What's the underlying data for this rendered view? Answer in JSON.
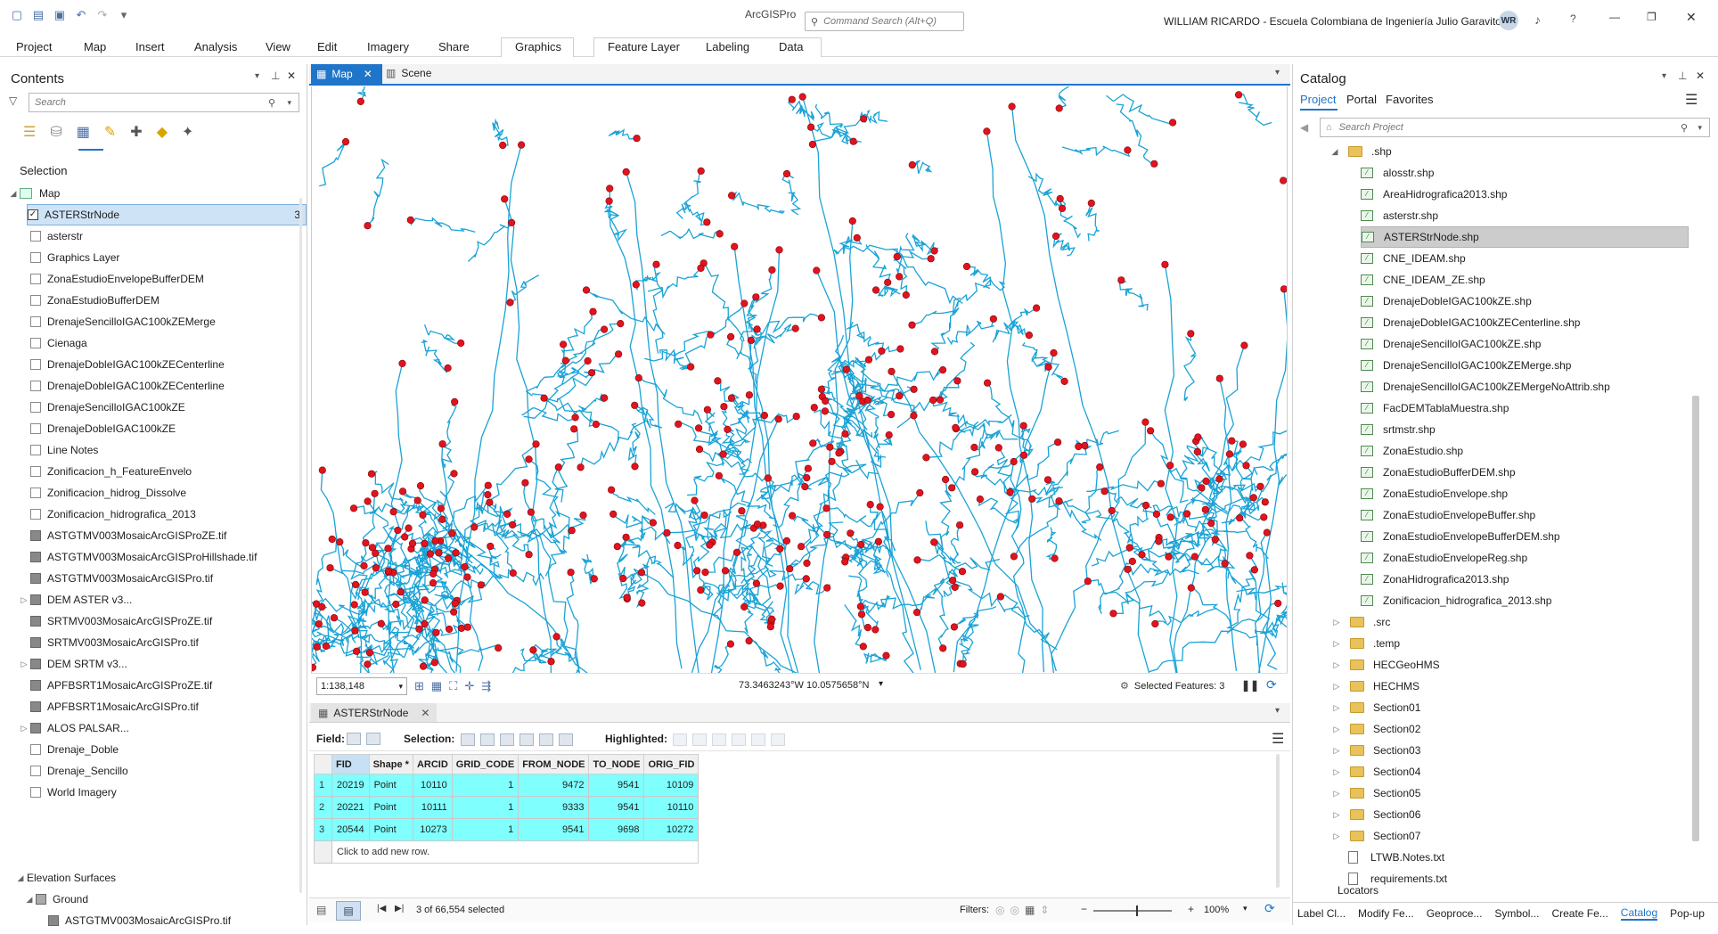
{
  "titlebar": {
    "app_title": "ArcGISPro",
    "command_search_placeholder": "Command Search (Alt+Q)",
    "user": "WILLIAM RICARDO  - Escuela Colombiana de Ingeniería Julio Garavito",
    "avatar_initials": "WR"
  },
  "ribbon": {
    "tabs": [
      "Project",
      "Map",
      "Insert",
      "Analysis",
      "View",
      "Edit",
      "Imagery",
      "Share",
      "Graphics",
      "Feature Layer",
      "Labeling",
      "Data"
    ]
  },
  "contents": {
    "title": "Contents",
    "search_placeholder": "Search",
    "section_label": "Selection",
    "map_label": "Map",
    "layers": [
      {
        "name": "ASTERStrNode",
        "type": "check",
        "checked": true,
        "count": "3",
        "selected": true
      },
      {
        "name": "asterstr",
        "type": "check"
      },
      {
        "name": "Graphics Layer",
        "type": "check"
      },
      {
        "name": "ZonaEstudioEnvelopeBufferDEM",
        "type": "check"
      },
      {
        "name": "ZonaEstudioBufferDEM",
        "type": "check"
      },
      {
        "name": "DrenajeSencilloIGAC100kZEMerge",
        "type": "check"
      },
      {
        "name": "Cienaga",
        "type": "check"
      },
      {
        "name": "DrenajeDobleIGAC100kZECenterline",
        "type": "check"
      },
      {
        "name": "DrenajeDobleIGAC100kZECenterline",
        "type": "check"
      },
      {
        "name": "DrenajeSencilloIGAC100kZE",
        "type": "check"
      },
      {
        "name": "DrenajeDobleIGAC100kZE",
        "type": "check"
      },
      {
        "name": "Line Notes",
        "type": "check"
      },
      {
        "name": "Zonificacion_h_FeatureEnvelo",
        "type": "check"
      },
      {
        "name": "Zonificacion_hidrog_Dissolve",
        "type": "check"
      },
      {
        "name": "Zonificacion_hidrografica_2013",
        "type": "check"
      },
      {
        "name": "ASTGTMV003MosaicArcGISProZE.tif",
        "type": "raster"
      },
      {
        "name": "ASTGTMV003MosaicArcGISProHillshade.tif",
        "type": "raster"
      },
      {
        "name": "ASTGTMV003MosaicArcGISPro.tif",
        "type": "raster"
      },
      {
        "name": "DEM ASTER v3...",
        "type": "raster",
        "expand": true
      },
      {
        "name": "SRTMV003MosaicArcGISProZE.tif",
        "type": "raster"
      },
      {
        "name": "SRTMV003MosaicArcGISPro.tif",
        "type": "raster"
      },
      {
        "name": "DEM SRTM v3...",
        "type": "raster",
        "expand": true
      },
      {
        "name": "APFBSRT1MosaicArcGISProZE.tif",
        "type": "raster"
      },
      {
        "name": "APFBSRT1MosaicArcGISPro.tif",
        "type": "raster"
      },
      {
        "name": "ALOS PALSAR...",
        "type": "raster",
        "expand": true
      },
      {
        "name": "Drenaje_Doble",
        "type": "check"
      },
      {
        "name": "Drenaje_Sencillo",
        "type": "check"
      },
      {
        "name": "World Imagery",
        "type": "check"
      }
    ],
    "elevation_label": "Elevation Surfaces",
    "ground_label": "Ground",
    "ground_child": "ASTGTMV003MosaicArcGISPro.tif"
  },
  "map_tabs": {
    "map": "Map",
    "scene": "Scene"
  },
  "map_status": {
    "scale": "1:138,148",
    "coordinates": "73.3463243°W 10.0575658°N",
    "selected_features": "Selected Features: 3"
  },
  "table": {
    "tab_label": "ASTERStrNode",
    "field_label": "Field:",
    "selection_label": "Selection:",
    "highlighted_label": "Highlighted:",
    "columns": [
      "FID",
      "Shape *",
      "ARCID",
      "GRID_CODE",
      "FROM_NODE",
      "TO_NODE",
      "ORIG_FID"
    ],
    "rows": [
      {
        "n": "1",
        "cells": [
          "20219",
          "Point",
          "10110",
          "1",
          "9472",
          "9541",
          "10109"
        ]
      },
      {
        "n": "2",
        "cells": [
          "20221",
          "Point",
          "10111",
          "1",
          "9333",
          "9541",
          "10110"
        ]
      },
      {
        "n": "3",
        "cells": [
          "20544",
          "Point",
          "10273",
          "1",
          "9541",
          "9698",
          "10272"
        ]
      }
    ],
    "add_row": "Click to add new row.",
    "selected_count": "3 of 66,554 selected",
    "filters_label": "Filters:",
    "zoom": "100%"
  },
  "catalog": {
    "title": "Catalog",
    "tabs": [
      "Project",
      "Portal",
      "Favorites"
    ],
    "search_placeholder": "Search Project",
    "shp_folder": ".shp",
    "shp_items": [
      "alosstr.shp",
      "AreaHidrografica2013.shp",
      "asterstr.shp",
      "ASTERStrNode.shp",
      "CNE_IDEAM.shp",
      "CNE_IDEAM_ZE.shp",
      "DrenajeDobleIGAC100kZE.shp",
      "DrenajeDobleIGAC100kZECenterline.shp",
      "DrenajeSencilloIGAC100kZE.shp",
      "DrenajeSencilloIGAC100kZEMerge.shp",
      "DrenajeSencilloIGAC100kZEMergeNoAttrib.shp",
      "FacDEMTablaMuestra.shp",
      "srtmstr.shp",
      "ZonaEstudio.shp",
      "ZonaEstudioBufferDEM.shp",
      "ZonaEstudioEnvelope.shp",
      "ZonaEstudioEnvelopeBuffer.shp",
      "ZonaEstudioEnvelopeBufferDEM.shp",
      "ZonaEstudioEnvelopeReg.shp",
      "ZonaHidrografica2013.shp",
      "Zonificacion_hidrografica_2013.shp"
    ],
    "folders": [
      ".src",
      ".temp",
      "HECGeoHMS",
      "HECHMS",
      "Section01",
      "Section02",
      "Section03",
      "Section04",
      "Section05",
      "Section06",
      "Section07"
    ],
    "files": [
      "LTWB.Notes.txt",
      "requirements.txt"
    ],
    "partial_item": "Locators"
  },
  "bottom_tabs": [
    "Label Cl...",
    "Modify Fe...",
    "Geoproce...",
    "Symbol...",
    "Create Fe...",
    "Catalog",
    "Pop-up"
  ],
  "colors": {
    "accent": "#1f75c9",
    "river": "#1aa3d6",
    "node": "#e0141e",
    "selection": "#80ffff"
  }
}
